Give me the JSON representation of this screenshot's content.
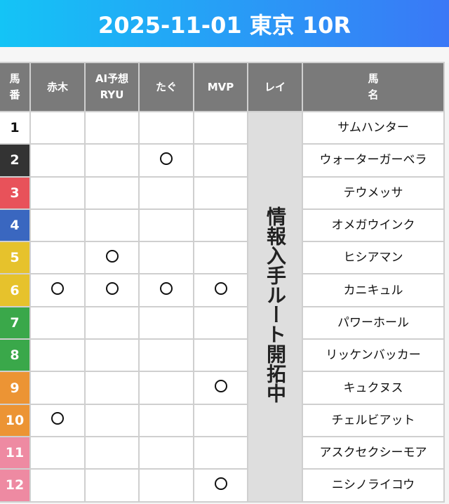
{
  "title": "2025-11-01 東京 10R",
  "headers": {
    "umaban": "馬\n番",
    "akagi": "赤木",
    "ai": "AI予想\nRYU",
    "tagu": "たぐ",
    "mvp": "MVP",
    "rei": "レイ",
    "name": "馬\n名"
  },
  "rei_note": "情報入手ルート開拓中",
  "mark_symbol": "○",
  "rows": [
    {
      "num": "1",
      "color": "#ffffff",
      "text_color": "#111111",
      "name": "サムハンター",
      "akagi": false,
      "ai": false,
      "tagu": false,
      "mvp": false
    },
    {
      "num": "2",
      "color": "#333333",
      "text_color": "#ffffff",
      "name": "ウォーターガーベラ",
      "akagi": false,
      "ai": false,
      "tagu": true,
      "mvp": false
    },
    {
      "num": "3",
      "color": "#e8525a",
      "text_color": "#ffffff",
      "name": "テウメッサ",
      "akagi": false,
      "ai": false,
      "tagu": false,
      "mvp": false
    },
    {
      "num": "4",
      "color": "#3a67c0",
      "text_color": "#ffffff",
      "name": "オメガウインク",
      "akagi": false,
      "ai": false,
      "tagu": false,
      "mvp": false
    },
    {
      "num": "5",
      "color": "#e6c22c",
      "text_color": "#ffffff",
      "name": "ヒシアマン",
      "akagi": false,
      "ai": true,
      "tagu": false,
      "mvp": false
    },
    {
      "num": "6",
      "color": "#e6c22c",
      "text_color": "#ffffff",
      "name": "カニキュル",
      "akagi": true,
      "ai": true,
      "tagu": true,
      "mvp": true
    },
    {
      "num": "7",
      "color": "#3aa84a",
      "text_color": "#ffffff",
      "name": "パワーホール",
      "akagi": false,
      "ai": false,
      "tagu": false,
      "mvp": false
    },
    {
      "num": "8",
      "color": "#3aa84a",
      "text_color": "#ffffff",
      "name": "リッケンバッカー",
      "akagi": false,
      "ai": false,
      "tagu": false,
      "mvp": false
    },
    {
      "num": "9",
      "color": "#ec9434",
      "text_color": "#ffffff",
      "name": "キュクヌス",
      "akagi": false,
      "ai": false,
      "tagu": false,
      "mvp": true
    },
    {
      "num": "10",
      "color": "#ec9434",
      "text_color": "#ffffff",
      "name": "チェルビアット",
      "akagi": true,
      "ai": false,
      "tagu": false,
      "mvp": false
    },
    {
      "num": "11",
      "color": "#ee8aa2",
      "text_color": "#ffffff",
      "name": "アスクセクシーモア",
      "akagi": false,
      "ai": false,
      "tagu": false,
      "mvp": false
    },
    {
      "num": "12",
      "color": "#ee8aa2",
      "text_color": "#ffffff",
      "name": "ニシノライコウ",
      "akagi": false,
      "ai": false,
      "tagu": false,
      "mvp": true
    }
  ]
}
